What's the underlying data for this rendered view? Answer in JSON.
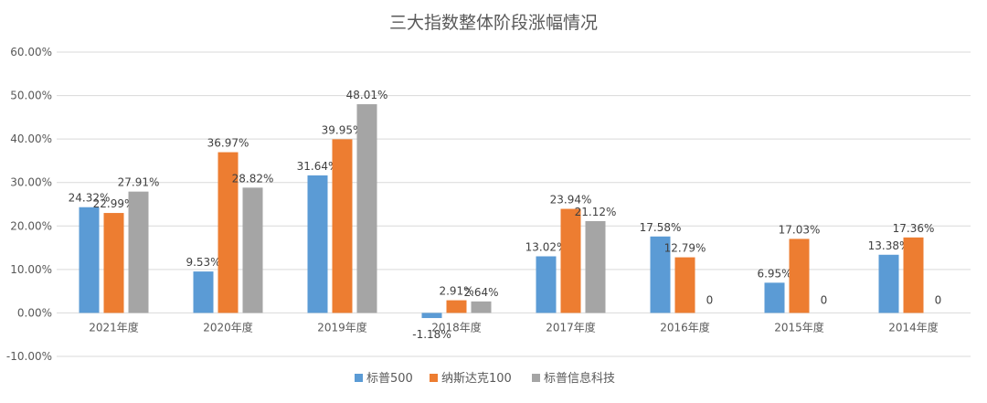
{
  "chart_data": {
    "type": "bar",
    "title": "三大指数整体阶段涨幅情况",
    "categories": [
      "2021年度",
      "2020年度",
      "2019年度",
      "2018年度",
      "2017年度",
      "2016年度",
      "2015年度",
      "2014年度"
    ],
    "series": [
      {
        "name": "标普500",
        "color": "#5b9bd5",
        "values": [
          24.32,
          9.53,
          31.64,
          -1.18,
          13.02,
          17.58,
          6.95,
          13.38
        ],
        "labels": [
          "24.32%",
          "9.53%",
          "31.64%",
          "-1.18%",
          "13.02%",
          "17.58%",
          "6.95%",
          "13.38%"
        ]
      },
      {
        "name": "纳斯达克100",
        "color": "#ed7d31",
        "values": [
          22.99,
          36.97,
          39.95,
          2.91,
          23.94,
          12.79,
          17.03,
          17.36
        ],
        "labels": [
          "22.99%",
          "36.97%",
          "39.95%",
          "2.91%",
          "23.94%",
          "12.79%",
          "17.03%",
          "17.36%"
        ]
      },
      {
        "name": "标普信息科技",
        "color": "#a5a5a5",
        "values": [
          27.91,
          28.82,
          48.01,
          2.64,
          21.12,
          0,
          0,
          0
        ],
        "labels": [
          "27.91%",
          "28.82%",
          "48.01%",
          "2.64%",
          "21.12%",
          "0",
          "0",
          "0"
        ]
      }
    ],
    "yticks": [
      "-10.00%",
      "0.00%",
      "10.00%",
      "20.00%",
      "30.00%",
      "40.00%",
      "50.00%",
      "60.00%"
    ],
    "ylim": [
      -10,
      60
    ],
    "ylabel": "",
    "xlabel": "",
    "grid": true,
    "legend_position": "bottom"
  }
}
